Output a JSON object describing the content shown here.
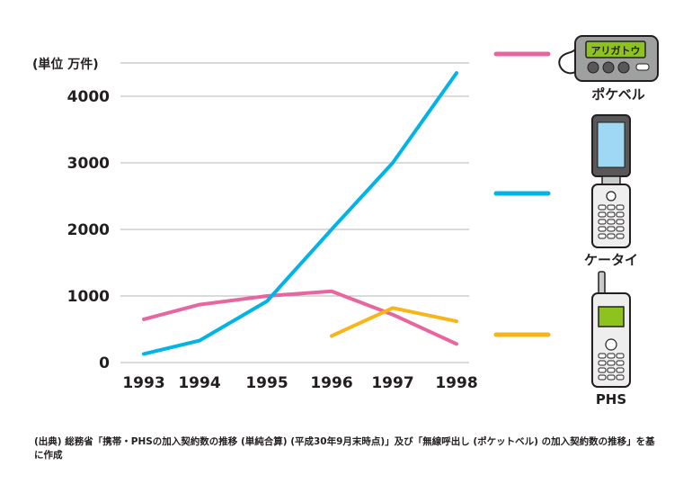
{
  "chart_data": {
    "type": "line",
    "unit_label": "(単位 万件)",
    "categories": [
      "1993",
      "1994",
      "1995",
      "1996",
      "1997",
      "1998"
    ],
    "y_ticks": [
      0,
      1000,
      2000,
      3000,
      4000
    ],
    "ylim": [
      0,
      4500
    ],
    "grid": true,
    "legend_position": "right",
    "series": [
      {
        "name": "ポケベル",
        "color": "#e8669f",
        "values": [
          650,
          870,
          1000,
          1070,
          720,
          280
        ]
      },
      {
        "name": "ケータイ",
        "color": "#00b4e6",
        "values": [
          130,
          330,
          920,
          2000,
          3000,
          4350
        ]
      },
      {
        "name": "PHS",
        "color": "#f7b519",
        "values": [
          null,
          null,
          null,
          400,
          820,
          620
        ]
      }
    ]
  },
  "pager_display_text": "アリガトウ",
  "source_note": "(出典) 総務省「携帯・PHSの加入契約数の推移 (単純合算) (平成30年9月末時点)」及び「無線呼出し (ポケットベル) の加入契約数の推移」を基に作成"
}
